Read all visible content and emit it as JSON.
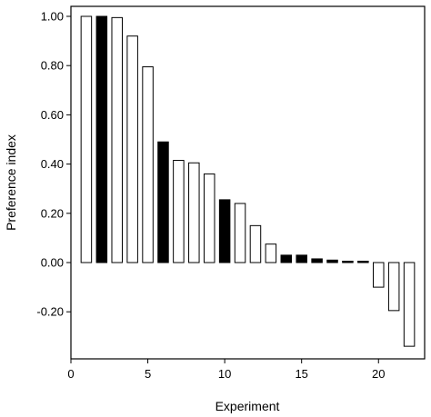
{
  "chart_data": {
    "type": "bar",
    "xlabel": "Experiment",
    "ylabel": "Preference index",
    "xlim": [
      0,
      23
    ],
    "ylim": [
      -0.34,
      1.02
    ],
    "x_ticks": [
      0,
      5,
      10,
      15,
      20
    ],
    "y_ticks": [
      1.0,
      0.8,
      0.6,
      0.4,
      0.2,
      0.0,
      -0.2
    ],
    "y_tick_labels": [
      "1.00",
      "0.80",
      "0.60",
      "0.40",
      "0.20",
      "0.00",
      "-0.20"
    ],
    "x_tick_labels": [
      "0",
      "5",
      "10",
      "15",
      "20"
    ],
    "grid": false,
    "colors": {
      "open": "#ffffff",
      "filled": "#000000",
      "stroke": "#000000"
    },
    "series": [
      {
        "x": [
          1,
          2,
          3,
          4,
          5,
          6,
          7,
          8,
          9,
          10,
          11,
          12,
          13,
          14,
          15,
          16,
          17,
          18,
          19,
          20,
          21,
          22
        ],
        "values": [
          1.0,
          1.0,
          0.995,
          0.92,
          0.795,
          0.49,
          0.415,
          0.405,
          0.36,
          0.255,
          0.24,
          0.15,
          0.075,
          0.03,
          0.03,
          0.015,
          0.01,
          0.005,
          0.0,
          -0.1,
          -0.195,
          -0.34
        ],
        "fill": [
          "open",
          "filled",
          "open",
          "open",
          "open",
          "filled",
          "open",
          "open",
          "open",
          "filled",
          "open",
          "open",
          "open",
          "filled",
          "filled",
          "filled",
          "filled",
          "filled",
          "filled",
          "open",
          "open",
          "open"
        ]
      }
    ]
  }
}
